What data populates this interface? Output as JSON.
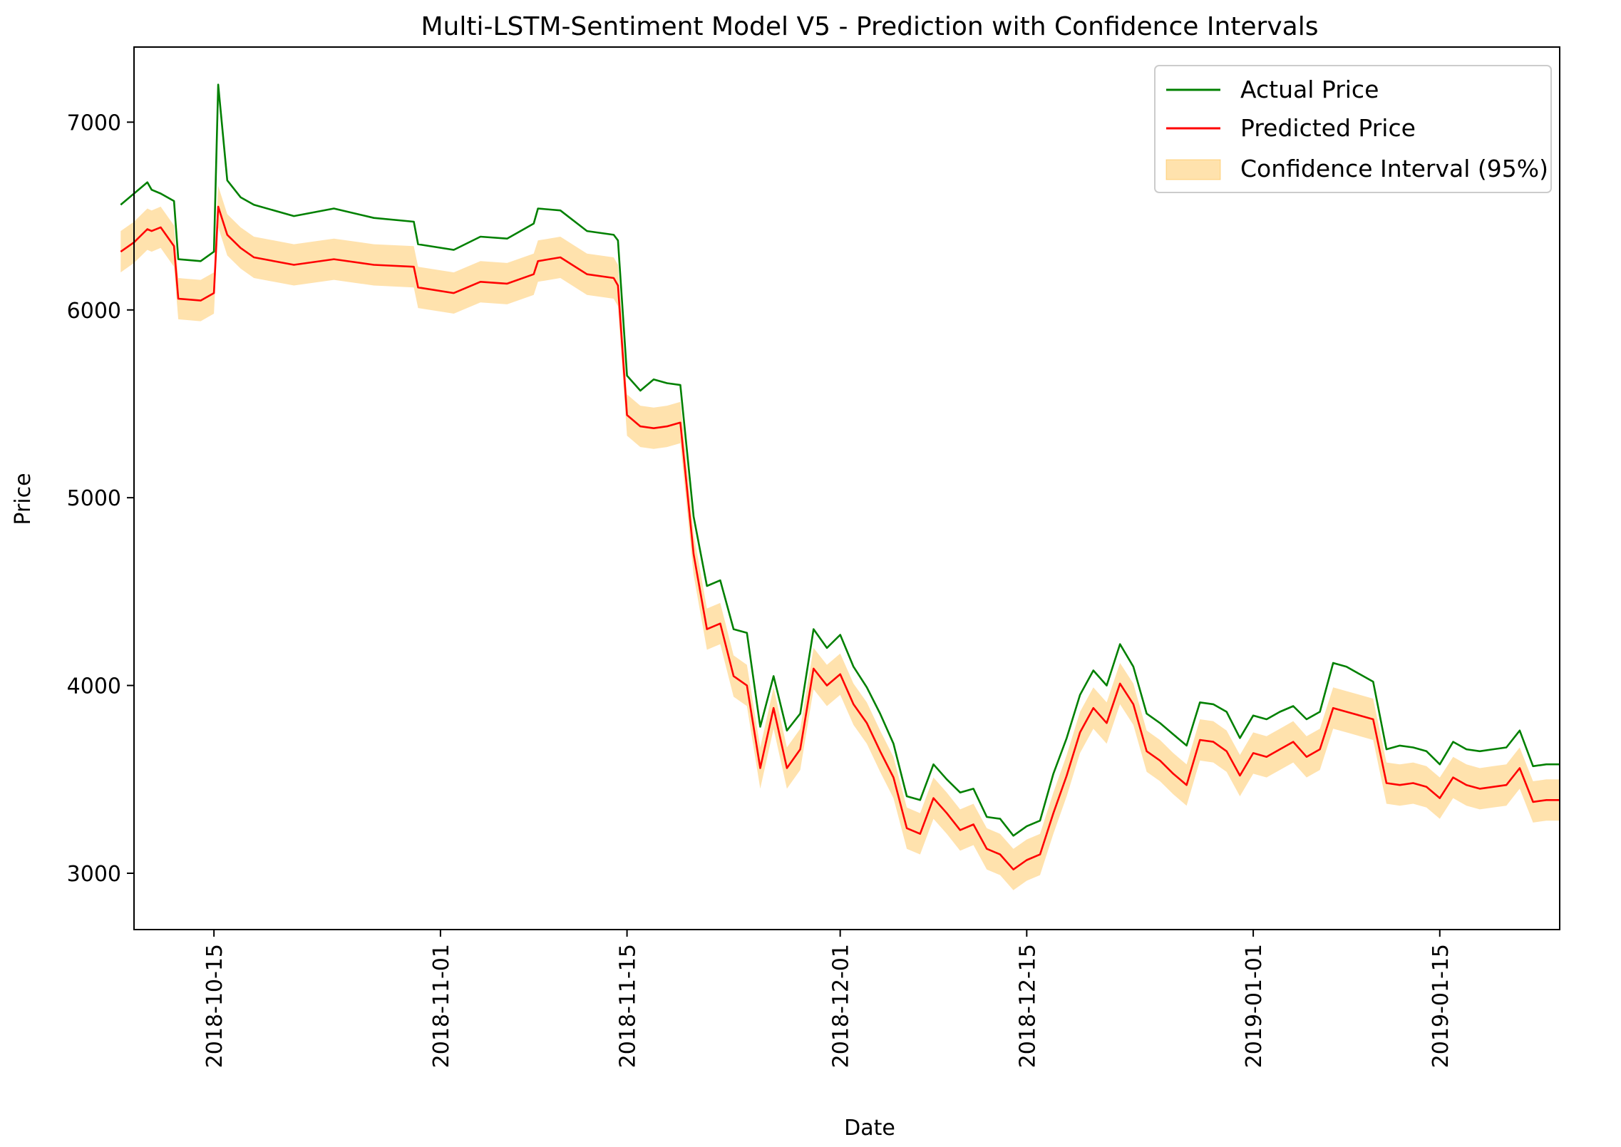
{
  "chart_data": {
    "type": "line",
    "title": "Multi-LSTM-Sentiment Model V5 - Prediction with Confidence Intervals",
    "xlabel": "Date",
    "ylabel": "Price",
    "x_range": [
      "2018-10-09",
      "2019-01-24"
    ],
    "ylim": [
      2700,
      7400
    ],
    "yticks": [
      3000,
      4000,
      5000,
      6000,
      7000
    ],
    "xticks": [
      "2018-10-15",
      "2018-11-01",
      "2018-11-15",
      "2018-12-01",
      "2018-12-15",
      "2019-01-01",
      "2019-01-15"
    ],
    "grid": false,
    "legend_position": "top-right",
    "colors": {
      "actual": "#008000",
      "predicted": "#ff0000",
      "ci": "#ffa500"
    },
    "series": [
      {
        "name": "Actual Price",
        "x": [
          "2018-10-08",
          "2018-10-09",
          "2018-10-10",
          "2018-10-10",
          "2018-10-11",
          "2018-10-12",
          "2018-10-12",
          "2018-10-14",
          "2018-10-15",
          "2018-10-15",
          "2018-10-16",
          "2018-10-17",
          "2018-10-18",
          "2018-10-21",
          "2018-10-24",
          "2018-10-27",
          "2018-10-30",
          "2018-10-30",
          "2018-11-02",
          "2018-11-04",
          "2018-11-06",
          "2018-11-08",
          "2018-11-08",
          "2018-11-10",
          "2018-11-12",
          "2018-11-14",
          "2018-11-14",
          "2018-11-15",
          "2018-11-16",
          "2018-11-17",
          "2018-11-18",
          "2018-11-19",
          "2018-11-20",
          "2018-11-21",
          "2018-11-22",
          "2018-11-23",
          "2018-11-24",
          "2018-11-25",
          "2018-11-26",
          "2018-11-27",
          "2018-11-28",
          "2018-11-29",
          "2018-11-30",
          "2018-12-01",
          "2018-12-02",
          "2018-12-03",
          "2018-12-04",
          "2018-12-05",
          "2018-12-06",
          "2018-12-07",
          "2018-12-08",
          "2018-12-09",
          "2018-12-10",
          "2018-12-11",
          "2018-12-12",
          "2018-12-13",
          "2018-12-14",
          "2018-12-15",
          "2018-12-16",
          "2018-12-17",
          "2018-12-18",
          "2018-12-19",
          "2018-12-20",
          "2018-12-21",
          "2018-12-22",
          "2018-12-23",
          "2018-12-24",
          "2018-12-25",
          "2018-12-26",
          "2018-12-27",
          "2018-12-28",
          "2018-12-29",
          "2018-12-30",
          "2018-12-31",
          "2019-01-01",
          "2019-01-02",
          "2019-01-03",
          "2019-01-04",
          "2019-01-05",
          "2019-01-06",
          "2019-01-07",
          "2019-01-08",
          "2019-01-09",
          "2019-01-10",
          "2019-01-11",
          "2019-01-12",
          "2019-01-13",
          "2019-01-14",
          "2019-01-15",
          "2019-01-16",
          "2019-01-17",
          "2019-01-18",
          "2019-01-19",
          "2019-01-20",
          "2019-01-21",
          "2019-01-22",
          "2019-01-23",
          "2019-01-24"
        ],
        "values": [
          6560,
          6620,
          6680,
          6640,
          6620,
          6580,
          6270,
          6260,
          6310,
          7200,
          6690,
          6600,
          6560,
          6500,
          6540,
          6490,
          6470,
          6350,
          6320,
          6390,
          6380,
          6460,
          6540,
          6530,
          6420,
          6400,
          6370,
          5650,
          5570,
          5630,
          5610,
          5600,
          4900,
          4530,
          4560,
          4300,
          4280,
          3780,
          4050,
          3760,
          3850,
          4300,
          4200,
          4270,
          4100,
          3990,
          3850,
          3690,
          3410,
          3390,
          3580,
          3500,
          3430,
          3450,
          3300,
          3290,
          3200,
          3250,
          3280,
          3530,
          3720,
          3950,
          4080,
          4000,
          4220,
          4100,
          3850,
          3800,
          3740,
          3680,
          3910,
          3900,
          3860,
          3720,
          3840,
          3820,
          3860,
          3890,
          3820,
          3860,
          4120,
          4100,
          4060,
          4020,
          3660,
          3680,
          3670,
          3650,
          3580,
          3700,
          3660,
          3650,
          3660,
          3670,
          3760,
          3570,
          3580,
          3580
        ]
      },
      {
        "name": "Predicted Price",
        "x": [
          "2018-10-08",
          "2018-10-09",
          "2018-10-10",
          "2018-10-10",
          "2018-10-11",
          "2018-10-12",
          "2018-10-12",
          "2018-10-14",
          "2018-10-15",
          "2018-10-15",
          "2018-10-16",
          "2018-10-17",
          "2018-10-18",
          "2018-10-21",
          "2018-10-24",
          "2018-10-27",
          "2018-10-30",
          "2018-10-30",
          "2018-11-02",
          "2018-11-04",
          "2018-11-06",
          "2018-11-08",
          "2018-11-08",
          "2018-11-10",
          "2018-11-12",
          "2018-11-14",
          "2018-11-14",
          "2018-11-15",
          "2018-11-16",
          "2018-11-17",
          "2018-11-18",
          "2018-11-19",
          "2018-11-20",
          "2018-11-21",
          "2018-11-22",
          "2018-11-23",
          "2018-11-24",
          "2018-11-25",
          "2018-11-26",
          "2018-11-27",
          "2018-11-28",
          "2018-11-29",
          "2018-11-30",
          "2018-12-01",
          "2018-12-02",
          "2018-12-03",
          "2018-12-04",
          "2018-12-05",
          "2018-12-06",
          "2018-12-07",
          "2018-12-08",
          "2018-12-09",
          "2018-12-10",
          "2018-12-11",
          "2018-12-12",
          "2018-12-13",
          "2018-12-14",
          "2018-12-15",
          "2018-12-16",
          "2018-12-17",
          "2018-12-18",
          "2018-12-19",
          "2018-12-20",
          "2018-12-21",
          "2018-12-22",
          "2018-12-23",
          "2018-12-24",
          "2018-12-25",
          "2018-12-26",
          "2018-12-27",
          "2018-12-28",
          "2018-12-29",
          "2018-12-30",
          "2018-12-31",
          "2019-01-01",
          "2019-01-02",
          "2019-01-03",
          "2019-01-04",
          "2019-01-05",
          "2019-01-06",
          "2019-01-07",
          "2019-01-08",
          "2019-01-09",
          "2019-01-10",
          "2019-01-11",
          "2019-01-12",
          "2019-01-13",
          "2019-01-14",
          "2019-01-15",
          "2019-01-16",
          "2019-01-17",
          "2019-01-18",
          "2019-01-19",
          "2019-01-20",
          "2019-01-21",
          "2019-01-22",
          "2019-01-23",
          "2019-01-24"
        ],
        "values": [
          6310,
          6360,
          6430,
          6420,
          6440,
          6340,
          6060,
          6050,
          6090,
          6550,
          6400,
          6330,
          6280,
          6240,
          6270,
          6240,
          6230,
          6120,
          6090,
          6150,
          6140,
          6190,
          6260,
          6280,
          6190,
          6170,
          6130,
          5440,
          5380,
          5370,
          5380,
          5400,
          4700,
          4300,
          4330,
          4050,
          4000,
          3560,
          3880,
          3560,
          3660,
          4090,
          4000,
          4060,
          3900,
          3800,
          3650,
          3510,
          3240,
          3210,
          3400,
          3320,
          3230,
          3260,
          3130,
          3100,
          3020,
          3070,
          3100,
          3320,
          3520,
          3750,
          3880,
          3800,
          4010,
          3900,
          3650,
          3600,
          3530,
          3470,
          3710,
          3700,
          3650,
          3520,
          3640,
          3620,
          3660,
          3700,
          3620,
          3660,
          3880,
          3860,
          3840,
          3820,
          3480,
          3470,
          3480,
          3460,
          3400,
          3510,
          3470,
          3450,
          3460,
          3470,
          3560,
          3380,
          3390,
          3390
        ]
      }
    ],
    "ci_halfwidth": 110
  },
  "legend": {
    "actual": "Actual Price",
    "predicted": "Predicted Price",
    "ci": "Confidence Interval (95%)"
  }
}
